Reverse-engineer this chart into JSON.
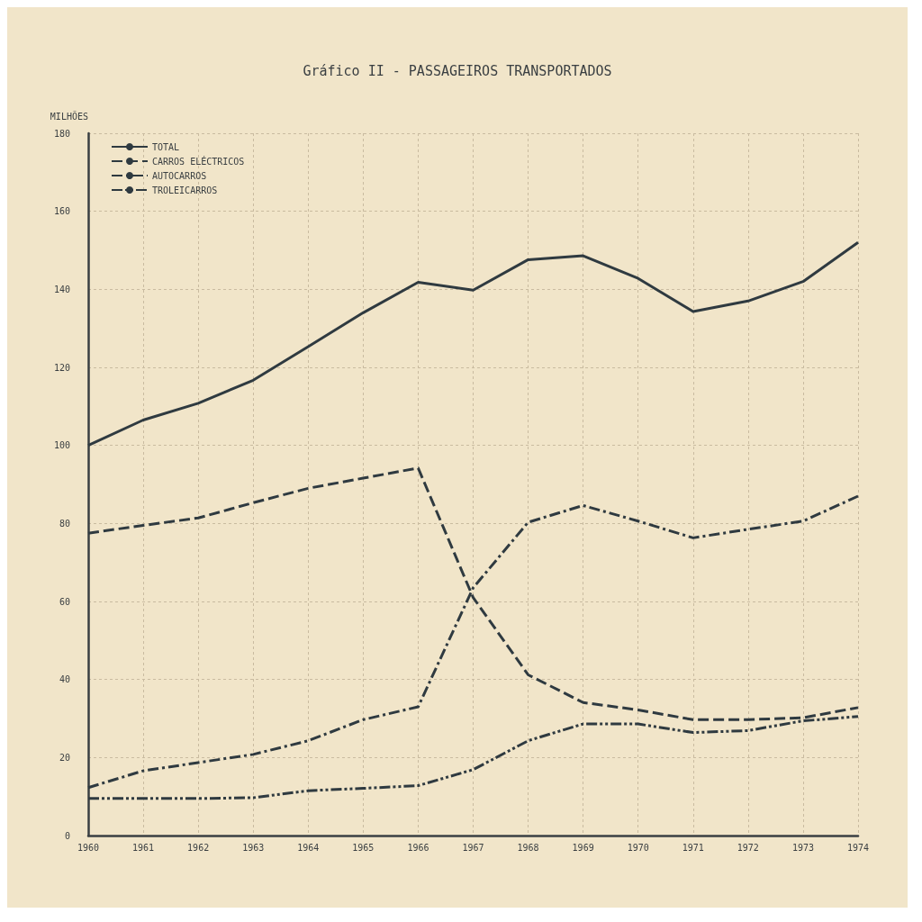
{
  "chart_data": {
    "type": "line",
    "title": "Gráfico II - PASSAGEIROS TRANSPORTADOS",
    "ylabel": "MILHÕES",
    "categories": [
      "1960",
      "1961",
      "1962",
      "1963",
      "1964",
      "1965",
      "1966",
      "1967",
      "1968",
      "1969",
      "1970",
      "1971",
      "1972",
      "1973",
      "1974"
    ],
    "ylim": [
      0,
      180
    ],
    "yticks": [
      0,
      20,
      40,
      60,
      80,
      100,
      120,
      140,
      160,
      180
    ],
    "grid": true,
    "legend": "top left",
    "marker": "none",
    "series": [
      {
        "name": "TOTAL",
        "color": "#2f3a40",
        "line_style": "solid",
        "values": [
          100,
          106.5,
          110.8,
          116.7,
          125.3,
          134,
          141.8,
          139.8,
          147.6,
          148.6,
          142.8,
          134.3,
          137,
          142,
          152
        ]
      },
      {
        "name": "CARROS ELÉCTRICOS",
        "color": "#2f3a40",
        "line_style": "dashed",
        "values": [
          77.5,
          79.5,
          81.4,
          85.3,
          89,
          91.6,
          94.2,
          61,
          41.2,
          34.1,
          32.2,
          29.7,
          29.7,
          30.2,
          32.8
        ]
      },
      {
        "name": "AUTOCARROS",
        "color": "#2f3a40",
        "line_style": "dashdot",
        "values": [
          12.3,
          16.6,
          18.7,
          20.8,
          24.3,
          29.7,
          33,
          63.5,
          80.3,
          84.6,
          80.6,
          76.3,
          78.5,
          80.6,
          87
        ]
      },
      {
        "name": "TROLEICARROS",
        "color": "#2f3a40",
        "line_style": "dashdotdot",
        "values": [
          9.5,
          9.5,
          9.5,
          9.7,
          11.5,
          12.1,
          12.8,
          16.9,
          24.3,
          28.6,
          28.6,
          26.4,
          26.9,
          29.4,
          30.5
        ]
      }
    ]
  }
}
